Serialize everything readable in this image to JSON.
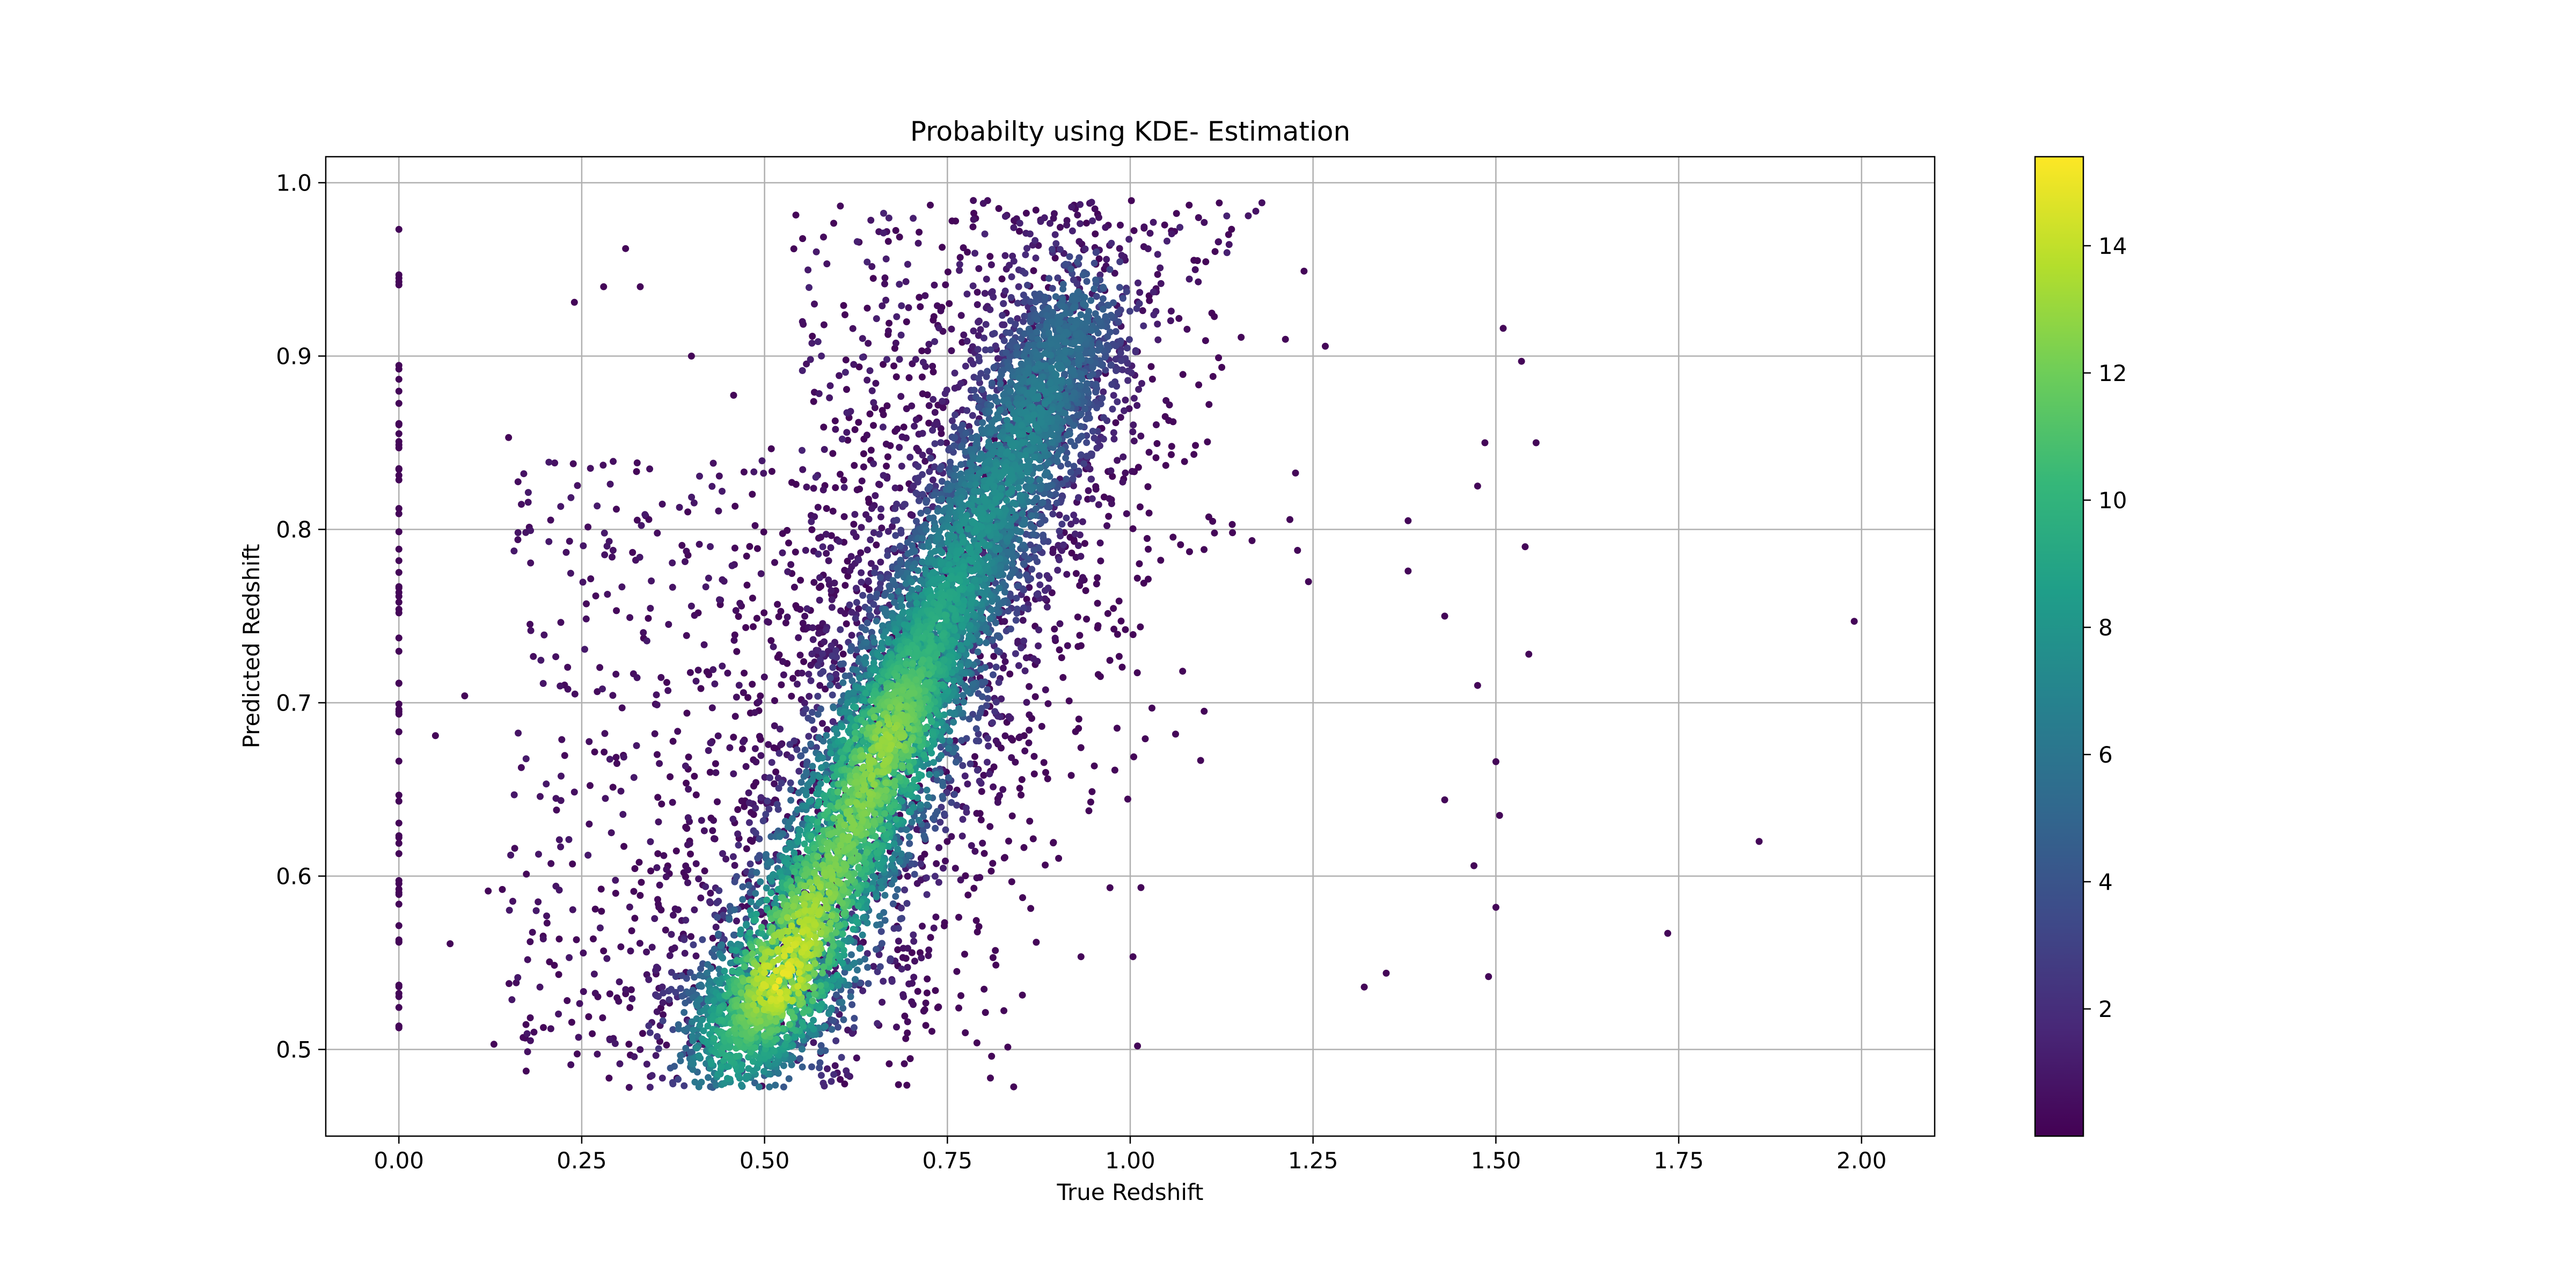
{
  "chart_data": {
    "type": "scatter",
    "title": "Probabilty using KDE- Estimation",
    "xlabel": "True Redshift",
    "ylabel": "Predicted Redshift",
    "xlim": [
      -0.1,
      2.1
    ],
    "ylim": [
      0.45,
      1.015
    ],
    "xticks": [
      0.0,
      0.25,
      0.5,
      0.75,
      1.0,
      1.25,
      1.5,
      1.75,
      2.0
    ],
    "xtick_labels": [
      "0.00",
      "0.25",
      "0.50",
      "0.75",
      "1.00",
      "1.25",
      "1.50",
      "1.75",
      "2.00"
    ],
    "yticks": [
      0.5,
      0.6,
      0.7,
      0.8,
      0.9,
      1.0
    ],
    "ytick_labels": [
      "0.5",
      "0.6",
      "0.7",
      "0.8",
      "0.9",
      "1.0"
    ],
    "grid": true,
    "colormap": "viridis",
    "colorbar": {
      "range": [
        0.0,
        15.4
      ],
      "ticks": [
        2,
        4,
        6,
        8,
        10,
        12,
        14
      ],
      "tick_labels": [
        "2",
        "4",
        "6",
        "8",
        "10",
        "12",
        "14"
      ]
    },
    "point_color": "density (KDE)",
    "density_ridge": {
      "x": [
        0.45,
        0.52,
        0.6,
        0.67,
        0.72,
        0.78,
        0.86,
        0.93
      ],
      "y": [
        0.5,
        0.54,
        0.61,
        0.68,
        0.73,
        0.79,
        0.86,
        0.93
      ],
      "peak_density": [
        9,
        15,
        12,
        13,
        10,
        8,
        7,
        5
      ]
    },
    "outliers": [
      {
        "x": 1.99,
        "y": 0.747
      },
      {
        "x": 1.86,
        "y": 0.62
      },
      {
        "x": 1.735,
        "y": 0.567
      },
      {
        "x": 1.555,
        "y": 0.85
      },
      {
        "x": 1.545,
        "y": 0.728
      },
      {
        "x": 1.54,
        "y": 0.79
      },
      {
        "x": 1.535,
        "y": 0.897
      },
      {
        "x": 1.51,
        "y": 0.916
      },
      {
        "x": 1.505,
        "y": 0.635
      },
      {
        "x": 1.5,
        "y": 0.582
      },
      {
        "x": 1.5,
        "y": 0.666
      },
      {
        "x": 1.49,
        "y": 0.542
      },
      {
        "x": 1.485,
        "y": 0.85
      },
      {
        "x": 1.475,
        "y": 0.825
      },
      {
        "x": 1.475,
        "y": 0.71
      },
      {
        "x": 1.47,
        "y": 0.606
      },
      {
        "x": 1.43,
        "y": 0.75
      },
      {
        "x": 1.43,
        "y": 0.644
      },
      {
        "x": 1.38,
        "y": 0.776
      },
      {
        "x": 1.38,
        "y": 0.805
      },
      {
        "x": 1.35,
        "y": 0.544
      },
      {
        "x": 1.32,
        "y": 0.536
      },
      {
        "x": 0.28,
        "y": 0.94
      },
      {
        "x": 0.31,
        "y": 0.962
      },
      {
        "x": 0.33,
        "y": 0.94
      },
      {
        "x": 0.24,
        "y": 0.931
      },
      {
        "x": 0.15,
        "y": 0.853
      },
      {
        "x": 0.13,
        "y": 0.503
      },
      {
        "x": 0.09,
        "y": 0.704
      },
      {
        "x": 0.07,
        "y": 0.561
      },
      {
        "x": 0.05,
        "y": 0.681
      },
      {
        "x": 0.4,
        "y": 0.9
      },
      {
        "x": 1.01,
        "y": 0.502
      }
    ],
    "vertical_strip": {
      "x": 0.0,
      "y_range": [
        0.49,
        0.98
      ]
    },
    "n_points_approx": 9000
  }
}
